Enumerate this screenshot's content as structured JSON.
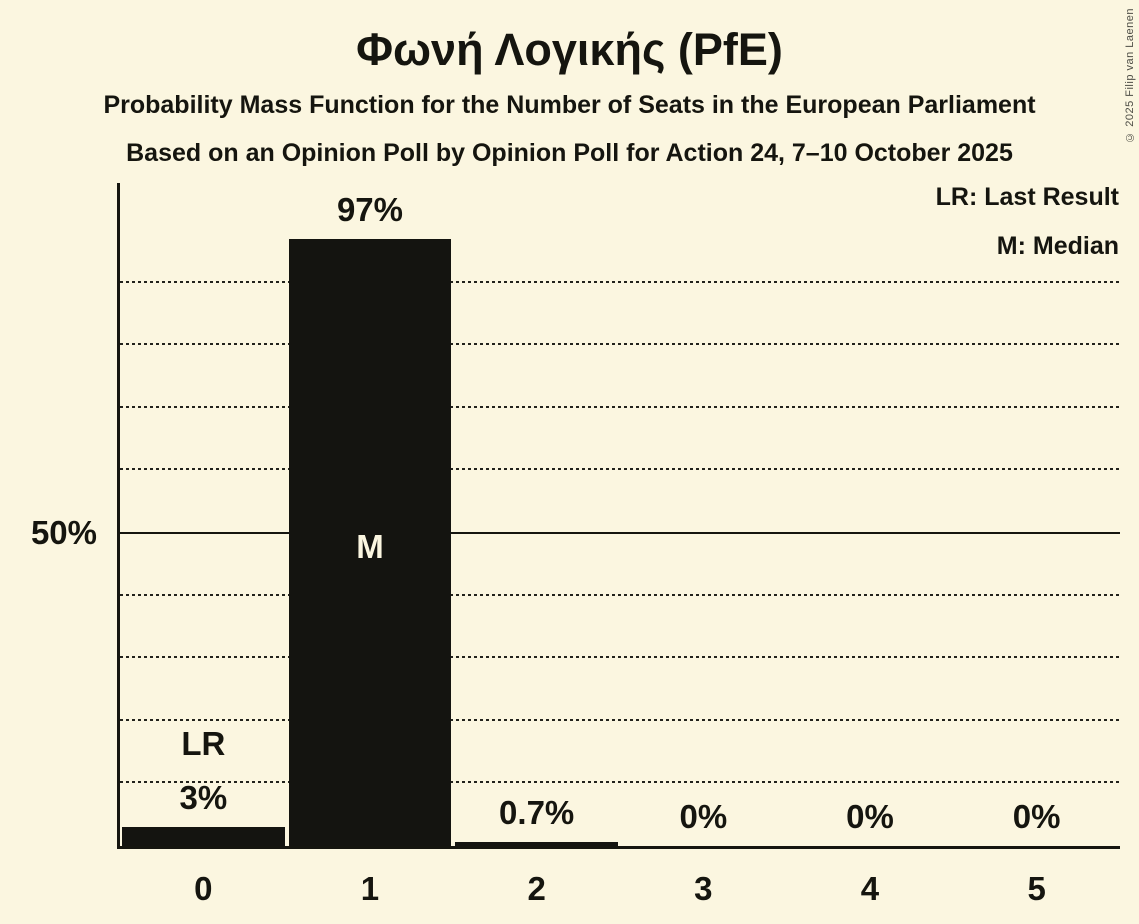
{
  "header": {
    "title": "Φωνή Λογικής (PfE)",
    "subtitle": "Probability Mass Function for the Number of Seats in the European Parliament",
    "source_line": "Based on an Opinion Poll by Opinion Poll for Action 24, 7–10 October 2025",
    "copyright": "© 2025 Filip van Laenen"
  },
  "legend": {
    "last_result": "LR: Last Result",
    "median": "M: Median"
  },
  "y_axis": {
    "tick_label": "50%",
    "tick_value": 50
  },
  "chart_data": {
    "type": "bar",
    "title": "Φωνή Λογικής (PfE)",
    "xlabel": "",
    "ylabel": "",
    "categories": [
      "0",
      "1",
      "2",
      "3",
      "4",
      "5"
    ],
    "values": [
      3,
      97,
      0.7,
      0,
      0,
      0
    ],
    "value_labels": [
      "3%",
      "97%",
      "0.7%",
      "0%",
      "0%",
      "0%"
    ],
    "ylim": [
      0,
      106
    ],
    "dotted_gridlines_pct": [
      10,
      20,
      30,
      40,
      60,
      70,
      80,
      90
    ],
    "solid_line_pct": 50,
    "legend_position": "top-right",
    "annotations": {
      "last_result_label": "LR",
      "last_result_index": 0,
      "median_label": "M",
      "median_index": 1
    },
    "colors": {
      "background": "#fbf6e0",
      "bar": "#141410",
      "text": "#15150f"
    }
  }
}
